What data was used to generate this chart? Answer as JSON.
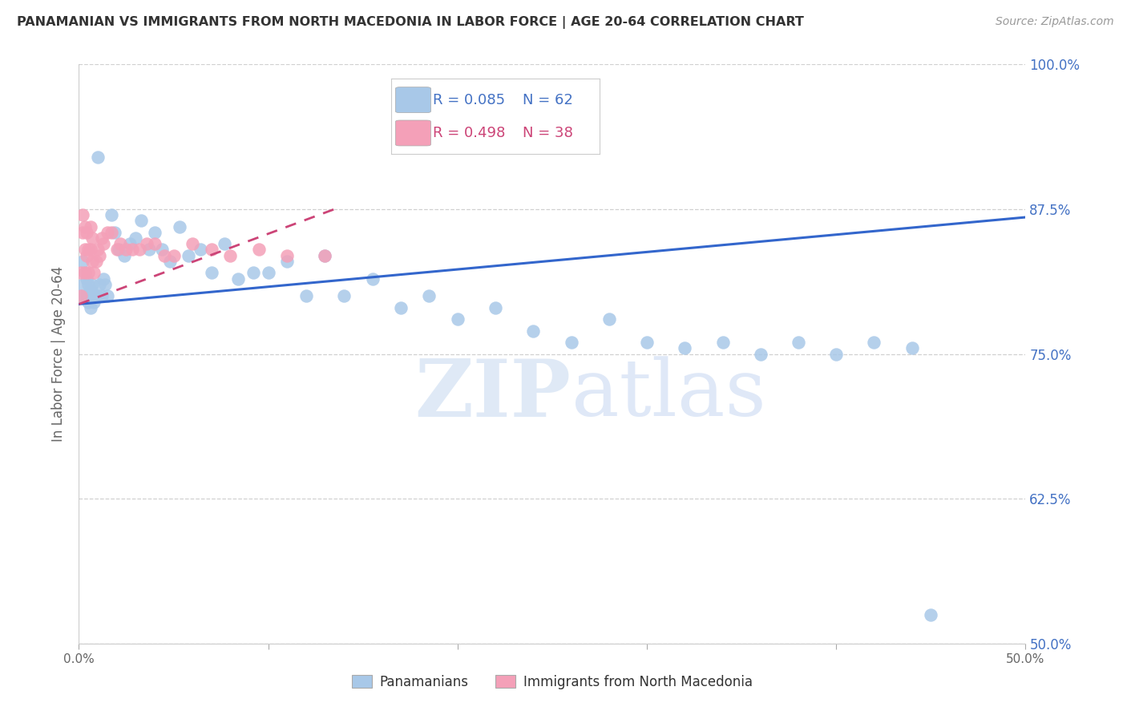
{
  "title": "PANAMANIAN VS IMMIGRANTS FROM NORTH MACEDONIA IN LABOR FORCE | AGE 20-64 CORRELATION CHART",
  "source": "Source: ZipAtlas.com",
  "ylabel": "In Labor Force | Age 20-64",
  "xlim": [
    0.0,
    0.5
  ],
  "ylim": [
    0.5,
    1.0
  ],
  "xtick_vals": [
    0.0,
    0.1,
    0.2,
    0.3,
    0.4,
    0.5
  ],
  "xtick_labels": [
    "0.0%",
    "",
    "",
    "",
    "",
    "50.0%"
  ],
  "ytick_vals": [
    0.5,
    0.625,
    0.75,
    0.875,
    1.0
  ],
  "ytick_labels": [
    "50.0%",
    "62.5%",
    "75.0%",
    "87.5%",
    "100.0%"
  ],
  "blue_dot_color": "#a8c8e8",
  "pink_dot_color": "#f4a0b8",
  "blue_line_color": "#3366cc",
  "pink_line_color": "#cc4477",
  "r_blue": 0.085,
  "n_blue": 62,
  "r_pink": 0.498,
  "n_pink": 38,
  "blue_line_x": [
    0.0,
    0.5
  ],
  "blue_line_y": [
    0.793,
    0.868
  ],
  "pink_line_x": [
    0.0,
    0.135
  ],
  "pink_line_y": [
    0.793,
    0.875
  ],
  "watermark_zip": "ZIP",
  "watermark_atlas": "atlas",
  "legend_label_blue": "Panamanians",
  "legend_label_pink": "Immigrants from North Macedonia",
  "blue_x": [
    0.001,
    0.002,
    0.002,
    0.003,
    0.003,
    0.004,
    0.004,
    0.005,
    0.005,
    0.006,
    0.006,
    0.007,
    0.007,
    0.008,
    0.009,
    0.01,
    0.01,
    0.011,
    0.012,
    0.013,
    0.014,
    0.015,
    0.017,
    0.019,
    0.021,
    0.024,
    0.027,
    0.03,
    0.033,
    0.037,
    0.04,
    0.044,
    0.048,
    0.053,
    0.058,
    0.064,
    0.07,
    0.077,
    0.084,
    0.092,
    0.1,
    0.11,
    0.12,
    0.13,
    0.14,
    0.155,
    0.17,
    0.185,
    0.2,
    0.22,
    0.24,
    0.26,
    0.28,
    0.3,
    0.32,
    0.34,
    0.36,
    0.38,
    0.4,
    0.42,
    0.44,
    0.45
  ],
  "blue_y": [
    0.8,
    0.81,
    0.83,
    0.82,
    0.8,
    0.815,
    0.8,
    0.81,
    0.795,
    0.805,
    0.79,
    0.8,
    0.81,
    0.795,
    0.8,
    0.92,
    0.8,
    0.81,
    0.8,
    0.815,
    0.81,
    0.8,
    0.87,
    0.855,
    0.84,
    0.835,
    0.845,
    0.85,
    0.865,
    0.84,
    0.855,
    0.84,
    0.83,
    0.86,
    0.835,
    0.84,
    0.82,
    0.845,
    0.815,
    0.82,
    0.82,
    0.83,
    0.8,
    0.835,
    0.8,
    0.815,
    0.79,
    0.8,
    0.78,
    0.79,
    0.77,
    0.76,
    0.78,
    0.76,
    0.755,
    0.76,
    0.75,
    0.76,
    0.75,
    0.76,
    0.755,
    0.525
  ],
  "pink_x": [
    0.001,
    0.001,
    0.002,
    0.002,
    0.003,
    0.003,
    0.003,
    0.004,
    0.004,
    0.005,
    0.005,
    0.006,
    0.006,
    0.007,
    0.007,
    0.008,
    0.009,
    0.01,
    0.011,
    0.012,
    0.013,
    0.015,
    0.017,
    0.02,
    0.022,
    0.025,
    0.028,
    0.032,
    0.036,
    0.04,
    0.045,
    0.05,
    0.06,
    0.07,
    0.08,
    0.095,
    0.11,
    0.13
  ],
  "pink_y": [
    0.8,
    0.82,
    0.855,
    0.87,
    0.86,
    0.84,
    0.82,
    0.855,
    0.835,
    0.84,
    0.82,
    0.86,
    0.84,
    0.85,
    0.83,
    0.82,
    0.83,
    0.84,
    0.835,
    0.85,
    0.845,
    0.855,
    0.855,
    0.84,
    0.845,
    0.84,
    0.84,
    0.84,
    0.845,
    0.845,
    0.835,
    0.835,
    0.845,
    0.84,
    0.835,
    0.84,
    0.835,
    0.835
  ]
}
